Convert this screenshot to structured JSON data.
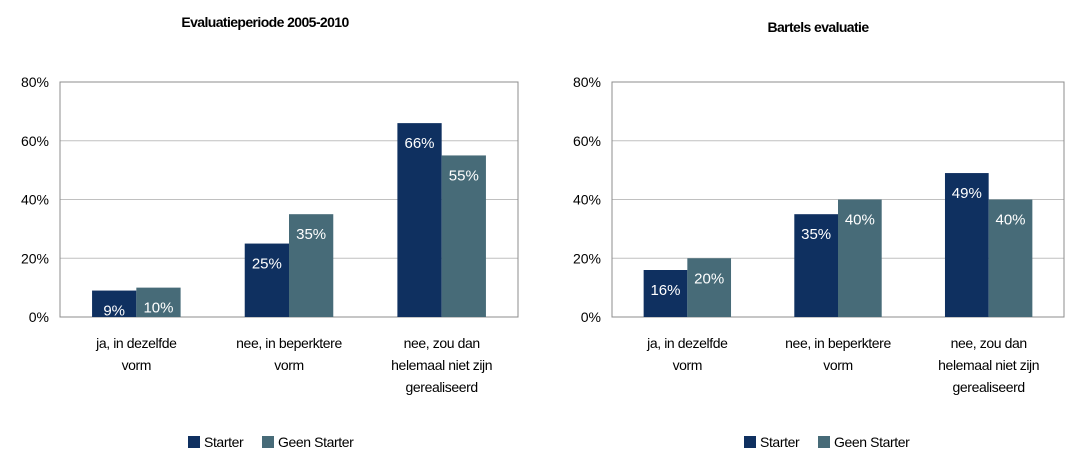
{
  "chart_data": [
    {
      "type": "bar",
      "title": "Evaluatieperiode 2005-2010",
      "categories": [
        [
          "ja, in dezelfde",
          "vorm"
        ],
        [
          "nee, in beperktere",
          "vorm"
        ],
        [
          "nee, zou dan",
          "helemaal niet zijn",
          "gerealiseerd"
        ]
      ],
      "series": [
        {
          "name": "Starter",
          "values": [
            9,
            25,
            66
          ],
          "labels": [
            "9%",
            "25%",
            "66%"
          ]
        },
        {
          "name": "Geen Starter",
          "values": [
            10,
            35,
            55
          ],
          "labels": [
            "10%",
            "35%",
            "55%"
          ]
        }
      ],
      "ylim": [
        0,
        80
      ],
      "yticks": [
        "0%",
        "20%",
        "40%",
        "60%",
        "80%"
      ],
      "legend_position": "bottom",
      "grid": true
    },
    {
      "type": "bar",
      "title": "Bartels evaluatie",
      "categories": [
        [
          "ja, in dezelfde",
          "vorm"
        ],
        [
          "nee, in beperktere",
          "vorm"
        ],
        [
          "nee, zou dan",
          "helemaal niet zijn",
          "gerealiseerd"
        ]
      ],
      "series": [
        {
          "name": "Starter",
          "values": [
            16,
            35,
            49
          ],
          "labels": [
            "16%",
            "35%",
            "49%"
          ]
        },
        {
          "name": "Geen Starter",
          "values": [
            20,
            40,
            40
          ],
          "labels": [
            "20%",
            "40%",
            "40%"
          ]
        }
      ],
      "ylim": [
        0,
        80
      ],
      "yticks": [
        "0%",
        "20%",
        "40%",
        "60%",
        "80%"
      ],
      "legend_position": "bottom",
      "grid": true
    }
  ],
  "colors": {
    "Starter": "#0f3060",
    "Geen Starter": "#476b78",
    "grid": "#c0c0c0",
    "frame": "#8c8c8c"
  }
}
